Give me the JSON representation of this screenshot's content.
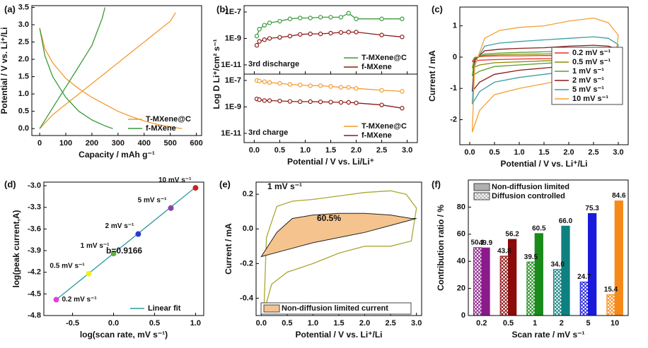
{
  "chart_data": [
    {
      "type": "line",
      "panel_label": "(a)",
      "xlabel": "Capacity / mAh g⁻¹",
      "ylabel": "Potential / V vs. Li⁺/Li",
      "xlim": [
        -30,
        620
      ],
      "xticks": [
        0,
        100,
        200,
        300,
        400,
        500,
        600
      ],
      "ylim": [
        -0.2,
        3.55
      ],
      "yticks": [
        {
          "value": 0,
          "label": "0.0"
        },
        0.5,
        {
          "value": 1,
          "label": "1.0"
        },
        1.5,
        {
          "value": 2,
          "label": "2.0"
        },
        2.5,
        {
          "value": 3,
          "label": "3.0"
        },
        3.5
      ],
      "legend": "lower right",
      "series": [
        {
          "name": "T-MXene@C",
          "color": "#f39a2e",
          "x": [
            0,
            20,
            50,
            100,
            150,
            200,
            250,
            300,
            350,
            400,
            450,
            500,
            545,
            null,
            0,
            50,
            100,
            150,
            200,
            250,
            300,
            350,
            400,
            450,
            500,
            520
          ],
          "values": [
            2.9,
            2.3,
            1.9,
            1.45,
            1.15,
            0.9,
            0.7,
            0.5,
            0.35,
            0.22,
            0.12,
            0.05,
            0,
            null,
            0,
            0.4,
            0.7,
            1.0,
            1.3,
            1.6,
            1.9,
            2.2,
            2.5,
            2.8,
            3.1,
            3.35
          ]
        },
        {
          "name": "f-MXene",
          "color": "#3a9a3a",
          "x": [
            0,
            20,
            50,
            100,
            150,
            200,
            250,
            280,
            null,
            0,
            50,
            100,
            150,
            200,
            240,
            250
          ],
          "values": [
            2.9,
            2.1,
            1.5,
            0.9,
            0.5,
            0.25,
            0.08,
            0,
            null,
            0,
            0.6,
            1.2,
            1.8,
            2.4,
            3.2,
            3.5
          ]
        }
      ]
    },
    {
      "type": "line",
      "panel_label": "(b)",
      "xlabel": "Potential / V vs. Li/Li⁺",
      "ylabel": "Log D Li⁺/cm² s⁻¹",
      "ylog": true,
      "markers": "open-circle",
      "xlim": [
        -0.2,
        3.2
      ],
      "xticks": [
        {
          "value": 0,
          "label": "0.0"
        },
        0.5,
        {
          "value": 1,
          "label": "1.0"
        },
        1.5,
        {
          "value": 2,
          "label": "2.0"
        },
        2.5,
        {
          "value": 3,
          "label": "3.0"
        }
      ],
      "x": [
        0.05,
        0.1,
        0.2,
        0.3,
        0.5,
        0.7,
        0.9,
        1.1,
        1.3,
        1.5,
        1.7,
        1.85,
        2.0,
        2.5,
        2.9
      ],
      "subplots": [
        {
          "annotation": "3rd discharge",
          "legend": "lower right",
          "ylim": [
            2e-12,
            3e-07
          ],
          "yticks": [
            {
              "value": 1e-07,
              "label": "1E-7"
            },
            {
              "value": 1e-09,
              "label": "1E-9"
            },
            {
              "value": 1e-11,
              "label": "1E-11"
            }
          ],
          "series": [
            {
              "name": "T-MXene@C",
              "color": "#3a9a3a",
              "values": [
                1.5e-09,
                5e-09,
                1e-08,
                1.5e-08,
                2e-08,
                3e-08,
                3.5e-08,
                3.5e-08,
                4e-08,
                4e-08,
                4e-08,
                8e-08,
                3e-08,
                3e-08,
                3e-08
              ]
            },
            {
              "name": "f-MXene",
              "color": "#8b1a1a",
              "values": [
                3e-10,
                6e-10,
                8e-10,
                1e-09,
                1.2e-09,
                1.5e-09,
                2e-09,
                2.2e-09,
                2.2e-09,
                2.5e-09,
                2.8e-09,
                3e-09,
                3e-09,
                1.8e-09,
                1.3e-09
              ]
            }
          ]
        },
        {
          "annotation": "3rd charge",
          "legend": "lower right",
          "ylim": [
            2e-12,
            3e-07
          ],
          "yticks": [
            {
              "value": 1e-07,
              "label": "1E-7"
            },
            {
              "value": 1e-09,
              "label": "1E-9"
            },
            {
              "value": 1e-11,
              "label": "1E-11"
            }
          ],
          "series": [
            {
              "name": "T-MXene@C",
              "color": "#f39a2e",
              "values": [
                1e-07,
                9e-08,
                8e-08,
                7e-08,
                6e-08,
                5e-08,
                4.5e-08,
                4e-08,
                4e-08,
                3.5e-08,
                3e-08,
                3e-08,
                2.5e-08,
                1.8e-08,
                1.5e-08
              ]
            },
            {
              "name": "f-MXene",
              "color": "#8b1a1a",
              "values": [
                4e-09,
                3.5e-09,
                3e-09,
                3e-09,
                2.8e-09,
                2.6e-09,
                2.5e-09,
                2.5e-09,
                2.4e-09,
                2.3e-09,
                2.2e-09,
                2.2e-09,
                2e-09,
                1.4e-09,
                8e-10
              ]
            }
          ]
        }
      ]
    },
    {
      "type": "line",
      "panel_label": "(c)",
      "xlabel": "Potential / V vs. Li⁺/Li",
      "ylabel": "Current / mA",
      "xlim": [
        -0.2,
        3.2
      ],
      "xticks": [
        {
          "value": 0,
          "label": "0.0"
        },
        0.5,
        {
          "value": 1,
          "label": "1.0"
        },
        1.5,
        {
          "value": 2,
          "label": "2.0"
        },
        2.5,
        {
          "value": 3,
          "label": "3.0"
        }
      ],
      "ylim": [
        -2.8,
        1.6
      ],
      "yticks": [
        -2,
        -1,
        0,
        1
      ],
      "legend": "center right",
      "legend_frame": true,
      "x": [
        0.05,
        0.1,
        0.3,
        0.6,
        1.0,
        1.5,
        2.0,
        2.5,
        2.8,
        3.0,
        2.9,
        2.5,
        2.0,
        1.5,
        1.0,
        0.5,
        0.2,
        0.05
      ],
      "series": [
        {
          "name": "0.2 mV s⁻¹",
          "color": "#e8302a",
          "values": [
            -0.15,
            -0.01,
            0.03,
            0.04,
            0.04,
            0.05,
            0.05,
            0.06,
            0.05,
            0.04,
            -0.03,
            -0.04,
            -0.04,
            -0.05,
            -0.06,
            -0.08,
            -0.1,
            -0.15
          ]
        },
        {
          "name": "0.5 mV s⁻¹",
          "color": "#8b8b00",
          "values": [
            -0.35,
            -0.03,
            0.06,
            0.08,
            0.09,
            0.1,
            0.12,
            0.13,
            0.12,
            0.09,
            -0.06,
            -0.09,
            -0.09,
            -0.12,
            -0.15,
            -0.18,
            -0.25,
            -0.35
          ]
        },
        {
          "name": "1 mV s⁻¹",
          "color": "#5aa02c",
          "values": [
            -0.6,
            -0.05,
            0.1,
            0.13,
            0.15,
            0.17,
            0.2,
            0.22,
            0.2,
            0.15,
            -0.1,
            -0.15,
            -0.15,
            -0.2,
            -0.25,
            -0.3,
            -0.45,
            -0.6
          ]
        },
        {
          "name": "2 mV s⁻¹",
          "color": "#8b1a1a",
          "values": [
            -1.1,
            -0.1,
            0.2,
            0.25,
            0.28,
            0.3,
            0.35,
            0.38,
            0.35,
            0.25,
            -0.2,
            -0.3,
            -0.28,
            -0.35,
            -0.42,
            -0.55,
            -0.8,
            -1.1
          ]
        },
        {
          "name": "5 mV s⁻¹",
          "color": "#3a9ea5",
          "values": [
            -1.5,
            -0.2,
            0.35,
            0.45,
            0.5,
            0.55,
            0.6,
            0.65,
            0.6,
            0.4,
            -0.35,
            -0.5,
            -0.45,
            -0.55,
            -0.65,
            -0.8,
            -1.1,
            -1.5
          ]
        },
        {
          "name": "10 mV s⁻¹",
          "color": "#f5a030",
          "values": [
            -2.4,
            -0.3,
            0.6,
            0.85,
            0.95,
            1.0,
            1.15,
            1.25,
            1.1,
            0.7,
            -0.6,
            -0.8,
            -0.7,
            -0.85,
            -1.0,
            -1.2,
            -1.7,
            -2.4
          ]
        }
      ]
    },
    {
      "type": "scatter",
      "panel_label": "(d)",
      "xlabel": "log(scan rate, mV s⁻¹)",
      "ylabel": "log(peak current,A)",
      "xlim": [
        -0.85,
        1.1
      ],
      "xticks": [
        -0.5,
        {
          "value": 0,
          "label": "0.0"
        },
        0.5,
        {
          "value": 1,
          "label": "1.0"
        }
      ],
      "ylim": [
        -4.8,
        -2.95
      ],
      "yticks": [
        -4.8,
        -4.5,
        -4.2,
        -3.9,
        -3.6,
        -3.3,
        {
          "value": -3,
          "label": "-3.0"
        }
      ],
      "annotations": [
        "b=0.9166"
      ],
      "legend": "lower right",
      "points": {
        "x": [
          -0.699,
          -0.301,
          0,
          0.301,
          0.699,
          1
        ],
        "values": [
          -4.58,
          -4.22,
          -3.94,
          -3.67,
          -3.31,
          -3.03
        ],
        "colors": [
          "#e040e0",
          "#f0f020",
          "#60b040",
          "#2a3ad0",
          "#8a40b0",
          "#d02020"
        ],
        "labels": [
          "0.2 mV s⁻¹",
          "0.5 mV s⁻¹",
          "1 mV s⁻¹",
          "2 mV s⁻¹",
          "5 mV s⁻¹",
          "10 mV s⁻¹"
        ]
      },
      "series": [
        {
          "name": "Linear fit",
          "color": "#2a9aa0",
          "x": [
            -0.699,
            1
          ],
          "values": [
            -4.58,
            -3.02
          ]
        }
      ]
    },
    {
      "type": "line",
      "panel_label": "(e)",
      "xlabel": "Potential / V vs. Li⁺/Li",
      "ylabel": "Current / mA",
      "xlim": [
        -0.1,
        3.1
      ],
      "xticks": [
        {
          "value": 0,
          "label": "0.0"
        },
        0.5,
        {
          "value": 1,
          "label": "1.0"
        },
        1.5,
        {
          "value": 2,
          "label": "2.0"
        },
        2.5,
        {
          "value": 3,
          "label": "3.0"
        }
      ],
      "ylim": [
        -0.5,
        0.27
      ],
      "yticks": [
        -0.4,
        -0.2,
        {
          "value": 0,
          "label": "0.0"
        },
        0.2
      ],
      "annotations": [
        "1 mV s⁻¹",
        "60.5%"
      ],
      "legend": "lower center",
      "legend_frame": true,
      "series": [
        {
          "color": "#a8a832",
          "x": [
            0.05,
            0.1,
            0.3,
            0.6,
            1.0,
            1.5,
            2.0,
            2.5,
            2.8,
            3.0,
            2.9,
            2.5,
            2.0,
            1.5,
            1.0,
            0.5,
            0.2,
            0.05
          ],
          "values": [
            -0.48,
            -0.05,
            0.13,
            0.16,
            0.17,
            0.19,
            0.21,
            0.22,
            0.2,
            0.12,
            -0.07,
            -0.1,
            -0.1,
            -0.14,
            -0.2,
            -0.25,
            -0.32,
            -0.48
          ]
        },
        {
          "name": "Non-diffusion limited current",
          "color": "#f5c48e",
          "fill": true,
          "x": [
            0,
            0.3,
            0.6,
            1.0,
            1.5,
            2.0,
            2.5,
            2.9,
            3.0,
            2.5,
            2.0,
            1.5,
            1.0,
            0.5,
            0
          ],
          "values": [
            -0.16,
            -0.02,
            0.06,
            0.08,
            0.09,
            0.09,
            0.08,
            0.06,
            0.06,
            0.02,
            -0.02,
            -0.05,
            -0.08,
            -0.12,
            -0.16
          ]
        }
      ]
    },
    {
      "type": "bar",
      "panel_label": "(f)",
      "xlabel": "Scan rate / mV s⁻¹",
      "ylabel": "Contribution ratio / %",
      "categories": [
        "0.2",
        "0.5",
        "1",
        "2",
        "5",
        "10"
      ],
      "category_colors": [
        "#8b1a8b",
        "#8b0a0a",
        "#1a8a1a",
        "#0f8080",
        "#1a1adb",
        "#f58a1a"
      ],
      "ylim": [
        0,
        100
      ],
      "yticks": [
        0,
        20,
        40,
        60,
        80
      ],
      "legend": "upper left",
      "series": [
        {
          "name": "Non-diffusion limited",
          "color": "#b0b0b0",
          "values": [
            49.9,
            56.2,
            60.5,
            66,
            75.3,
            84.6
          ],
          "value_labels": [
            "49.9",
            "56.2",
            "60.5",
            "66.0",
            "75.3",
            "84.6"
          ]
        },
        {
          "name": "Diffusion controlled",
          "color": "#b0b0b0",
          "pattern": "crosshatch",
          "values": [
            50.1,
            43.8,
            39.5,
            34,
            24.7,
            15.4
          ],
          "value_labels": [
            "50.1",
            "43.8",
            "39.5",
            "34.0",
            "24.7",
            "15.4"
          ]
        }
      ]
    }
  ]
}
